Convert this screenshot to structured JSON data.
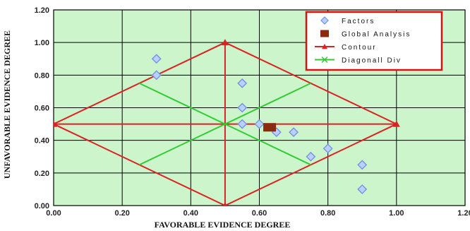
{
  "chart_data": {
    "type": "scatter",
    "xlabel": "FAVORABLE EVIDENCE DEGREE",
    "ylabel": "UNFAVORABLE EVIDENCE DEGREE",
    "xlim": [
      0,
      1.2
    ],
    "ylim": [
      0,
      1.2
    ],
    "x_ticks": [
      "0.00",
      "0.20",
      "0.40",
      "0.60",
      "0.80",
      "1.00",
      "1.20"
    ],
    "y_ticks": [
      "0.00",
      "0.20",
      "0.40",
      "0.60",
      "0.80",
      "1.00",
      "1.20"
    ],
    "grid": true,
    "legend_position": "top-right",
    "plot_background": "#ccf5cc",
    "series": [
      {
        "name": "Factors",
        "kind": "marker",
        "marker": "diamond",
        "color": "#6f8fe6",
        "fill": "#bcd0ff",
        "x": [
          0.3,
          0.3,
          0.55,
          0.55,
          0.55,
          0.6,
          0.65,
          0.7,
          0.75,
          0.8,
          0.9,
          0.9
        ],
        "y": [
          0.9,
          0.8,
          0.75,
          0.6,
          0.5,
          0.5,
          0.45,
          0.45,
          0.3,
          0.35,
          0.25,
          0.1
        ]
      },
      {
        "name": "Global Analysis",
        "kind": "marker",
        "marker": "square",
        "color": "#8b2a0c",
        "x": [
          0.63
        ],
        "y": [
          0.48
        ]
      },
      {
        "name": "Contour",
        "kind": "lines",
        "marker": "triangle",
        "color": "#dd2222",
        "segments": [
          [
            [
              0.0,
              0.5
            ],
            [
              0.5,
              1.0
            ],
            [
              1.0,
              0.5
            ],
            [
              0.5,
              0.0
            ],
            [
              0.0,
              0.5
            ]
          ],
          [
            [
              0.5,
              0.0
            ],
            [
              0.5,
              1.0
            ]
          ],
          [
            [
              0.0,
              0.5
            ],
            [
              1.0,
              0.5
            ]
          ]
        ],
        "marked_points": [
          [
            0.0,
            0.5
          ],
          [
            0.5,
            1.0
          ],
          [
            1.0,
            0.5
          ],
          [
            0.5,
            0.0
          ]
        ]
      },
      {
        "name": "Diagonall Div",
        "kind": "lines",
        "marker": "x",
        "color": "#33cc33",
        "segments": [
          [
            [
              0.25,
              0.75
            ],
            [
              0.75,
              0.25
            ]
          ],
          [
            [
              0.25,
              0.25
            ],
            [
              0.75,
              0.75
            ]
          ]
        ]
      }
    ]
  }
}
